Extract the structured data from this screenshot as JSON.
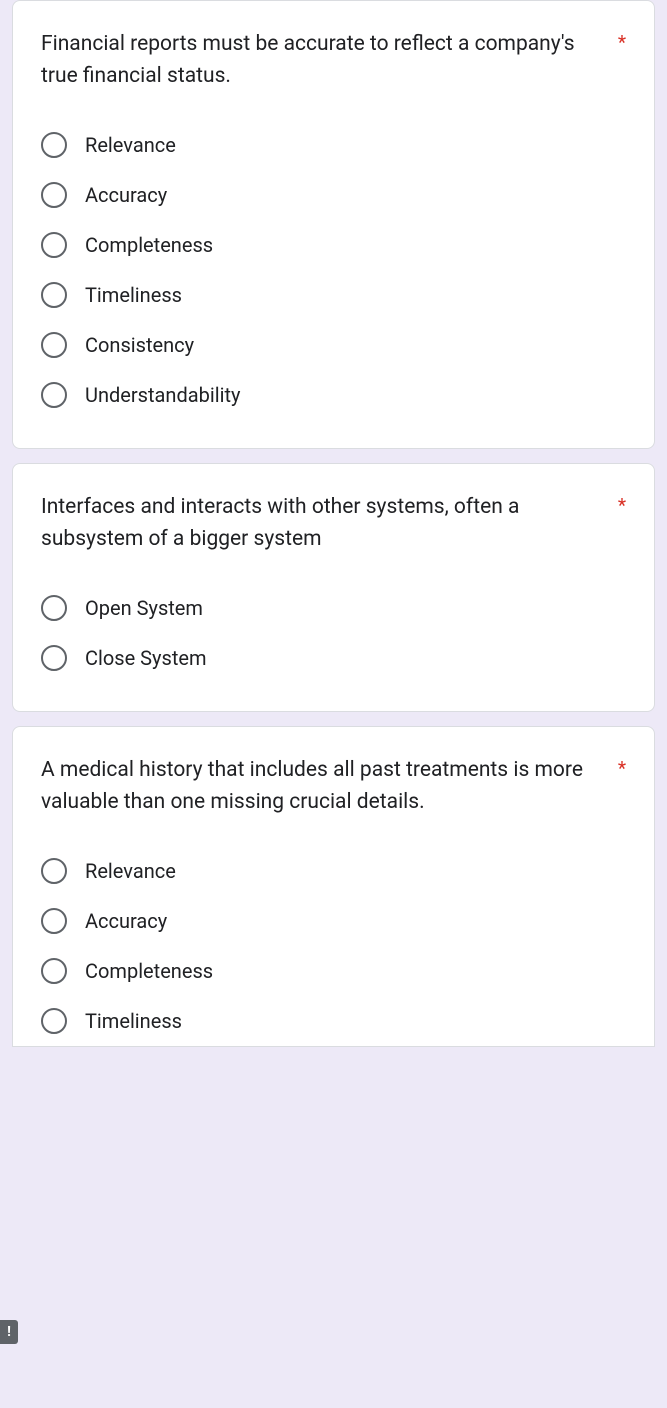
{
  "required_marker": "*",
  "error_badge": "!",
  "questions": [
    {
      "text": "Financial reports must be accurate to reflect a company's true financial status.",
      "required": true,
      "options": [
        "Relevance",
        "Accuracy",
        "Completeness",
        "Timeliness",
        "Consistency",
        "Understandability"
      ]
    },
    {
      "text": "Interfaces and interacts with other systems, often a subsystem of a bigger system",
      "required": true,
      "options": [
        "Open System",
        "Close System"
      ]
    },
    {
      "text": "A medical history that includes all past treatments is more valuable than one missing crucial details.",
      "required": true,
      "options": [
        "Relevance",
        "Accuracy",
        "Completeness",
        "Timeliness"
      ]
    }
  ],
  "colors": {
    "background": "#ede9f7",
    "card_bg": "#ffffff",
    "text": "#202124",
    "radio_border": "#5f6368",
    "required": "#d93025",
    "card_border": "#dadce0"
  }
}
